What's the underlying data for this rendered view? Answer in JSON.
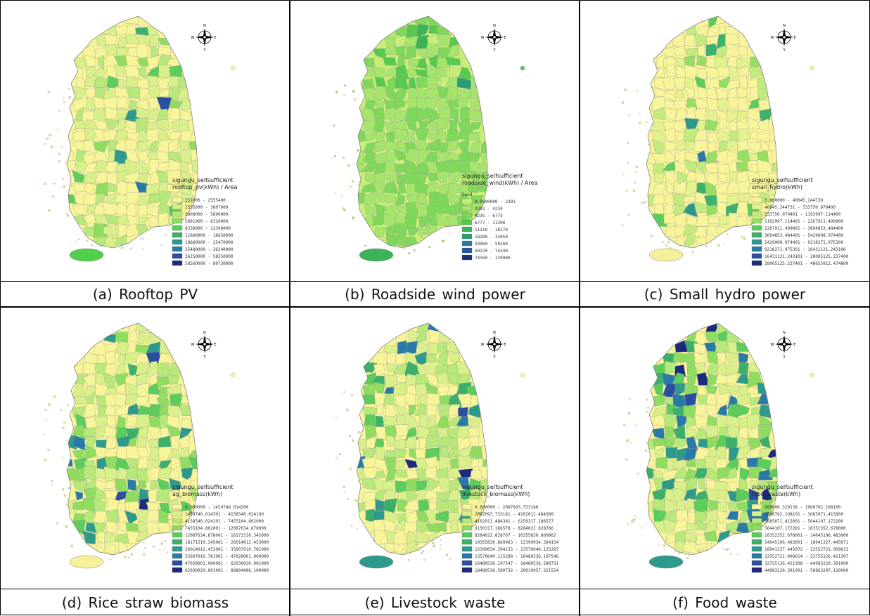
{
  "panels": [
    {
      "caption": "(a) Rooftop PV",
      "legend_title": [
        "sigungu_selfsufficient",
        "rooftop_pv(kWh) / Area"
      ],
      "legend_items": [
        "351000 - 2555400",
        "2555000 - 3807000",
        "3808000 - 5890000",
        "5891000 - 8320000",
        "8330000 - 12390000",
        "12600000 - 18650000",
        "18660000 - 25470000",
        "25480000 - 36240000",
        "36250000 - 58550000",
        "58560000 - 80730000"
      ],
      "palette": [
        "#f8f49a",
        "#d9f08a",
        "#b8e87a",
        "#8fdc60",
        "#5ccc5a",
        "#3caf6a",
        "#2d9a8c",
        "#2a7aa8",
        "#2a4ea0",
        "#1b2a7c"
      ],
      "weights": [
        0.42,
        0.38,
        0.12,
        0.04,
        0.02,
        0.01,
        0.005,
        0.003,
        0.001,
        0.001
      ],
      "jeju_color": "#4fd04a"
    },
    {
      "caption": "(b) Roadside wind power",
      "legend_title": [
        "sigungu_selfsufficient",
        "roadside_wind(kWh) / Area"
      ],
      "legend_sub": "Land",
      "legend_items": [
        "0.0000000 - 2391",
        "2392 - 4234",
        "4235 - 6775",
        "6777 - 11300",
        "11310 - 18270",
        "18280 - 33050",
        "33060 - 50260",
        "50270 - 74340",
        "74350 - 129900"
      ],
      "palette": [
        "#c9ee78",
        "#a6e46c",
        "#7fd85a",
        "#56c94e",
        "#3cb356",
        "#2c9a78",
        "#267c9a",
        "#26589c",
        "#1b2f7a"
      ],
      "weights": [
        0.25,
        0.28,
        0.22,
        0.14,
        0.06,
        0.03,
        0.01,
        0.005,
        0.005
      ],
      "jeju_color": "#3cb356"
    },
    {
      "caption": "(c) Small hydro power",
      "legend_title": [
        "sigungu_selfsufficient",
        "small_hydro(kWh)"
      ],
      "legend_items": [
        "0.000000 - 40645.244730",
        "40645.244731 - 533750.079400",
        "533750.079401 - 1192997.114400",
        "1192997.114401 - 2267911.499800",
        "2267911.499801 - 3604853.484400",
        "3604853.484401 - 5429008.974400",
        "5429008.974401 - 9218271.975300",
        "9218271.975301 - 16431121.243100",
        "16431121.243101 - 28005125.237400",
        "28005125.237401 - 48055012.474800"
      ],
      "palette": [
        "#f8f49a",
        "#e3f28c",
        "#c2ea7c",
        "#96de62",
        "#5ccc5a",
        "#3cb06c",
        "#2d968c",
        "#2a78a6",
        "#2a4e9e",
        "#1b2a7c"
      ],
      "weights": [
        0.66,
        0.14,
        0.09,
        0.05,
        0.025,
        0.015,
        0.012,
        0.005,
        0.002,
        0.001
      ],
      "jeju_color": "#f6f09a"
    },
    {
      "caption": "(d) Rice straw biomass",
      "legend_title": [
        "sigungu_selfsufficient",
        "ag_biomass(kWh)"
      ],
      "legend_items": [
        "0.000000 - 1459740.014300",
        "1459740.014301 - 4158540.024100",
        "4158540.024101 - 7455104.802000",
        "7455104.802001 - 12087634.878000",
        "12087634.878001 - 18171510.345000",
        "18171510.345001 - 26014012.453000",
        "26014012.453001 - 35607010.781000",
        "35607010.781001 - 47028001.000000",
        "47028001.000001 - 62030020.001000",
        "62030020.001001 - 89804006.100000"
      ],
      "palette": [
        "#f8f49a",
        "#d9f08a",
        "#b8e87a",
        "#8fdc60",
        "#5ccc5a",
        "#3caf6a",
        "#2d9a8c",
        "#2a7aa8",
        "#2a4ea0",
        "#1b2a7c"
      ],
      "weights": [
        0.4,
        0.22,
        0.12,
        0.09,
        0.06,
        0.04,
        0.03,
        0.02,
        0.01,
        0.01
      ],
      "jeju_color": "#f6f09a"
    },
    {
      "caption": "(e) Livestock waste",
      "legend_title": [
        "sigungu_selfsufficient",
        "livestock_biomass(kWh)"
      ],
      "legend_items": [
        "0.000000 - 2087093.733180",
        "2087093.733181 - 4102011.484380",
        "4102011.484381 - 6150317.186577",
        "6150317.186578 - 8284022.828766",
        "8284022.828767 - 10355830.869962",
        "10355830.869963 - 12399034.394154",
        "12399034.394155 - 13570640.125287",
        "13570640.125288 - 16480536.197546",
        "16480536.197547 - 18480536.580731",
        "18480536.580732 - 20010057.321554"
      ],
      "palette": [
        "#f8f49a",
        "#d9f08a",
        "#b8e87a",
        "#8fdc60",
        "#5ccc5a",
        "#3caf6a",
        "#2d9a8c",
        "#2a7aa8",
        "#2a4ea0",
        "#1b2a7c"
      ],
      "weights": [
        0.3,
        0.28,
        0.16,
        0.09,
        0.06,
        0.04,
        0.03,
        0.02,
        0.01,
        0.01
      ],
      "jeju_color": "#2d9a8c"
    },
    {
      "caption": "(f) Food waste",
      "legend_title": [
        "sigungu_selfsufficient",
        "food_waste(kWh)"
      ],
      "legend_items": [
        "000000.320238 - 1960702.108100",
        "1960702.108101 - 3685071.415000",
        "3685071.415001 - 5644107.172280",
        "5644107.172281 - 10352352.678000",
        "10352352.678001 - 14045196.483000",
        "14045196.483001 - 18941327.445071",
        "18941327.445072 - 22552721.009613",
        "22552721.009614 - 32755126.421307",
        "32755126.421308 - 44983220.391000",
        "44983220.391001 - 56863207.120000"
      ],
      "palette": [
        "#f8f49a",
        "#d9f08a",
        "#b8e87a",
        "#8fdc60",
        "#5ccc5a",
        "#3caf6a",
        "#2d9a8c",
        "#2a7aa8",
        "#2a4ea0",
        "#1b2a7c"
      ],
      "weights": [
        0.2,
        0.2,
        0.16,
        0.12,
        0.09,
        0.07,
        0.06,
        0.05,
        0.03,
        0.02
      ],
      "jeju_color": "#2d9a8c"
    }
  ],
  "compass_letters": [
    "N",
    "E",
    "S",
    "W"
  ]
}
